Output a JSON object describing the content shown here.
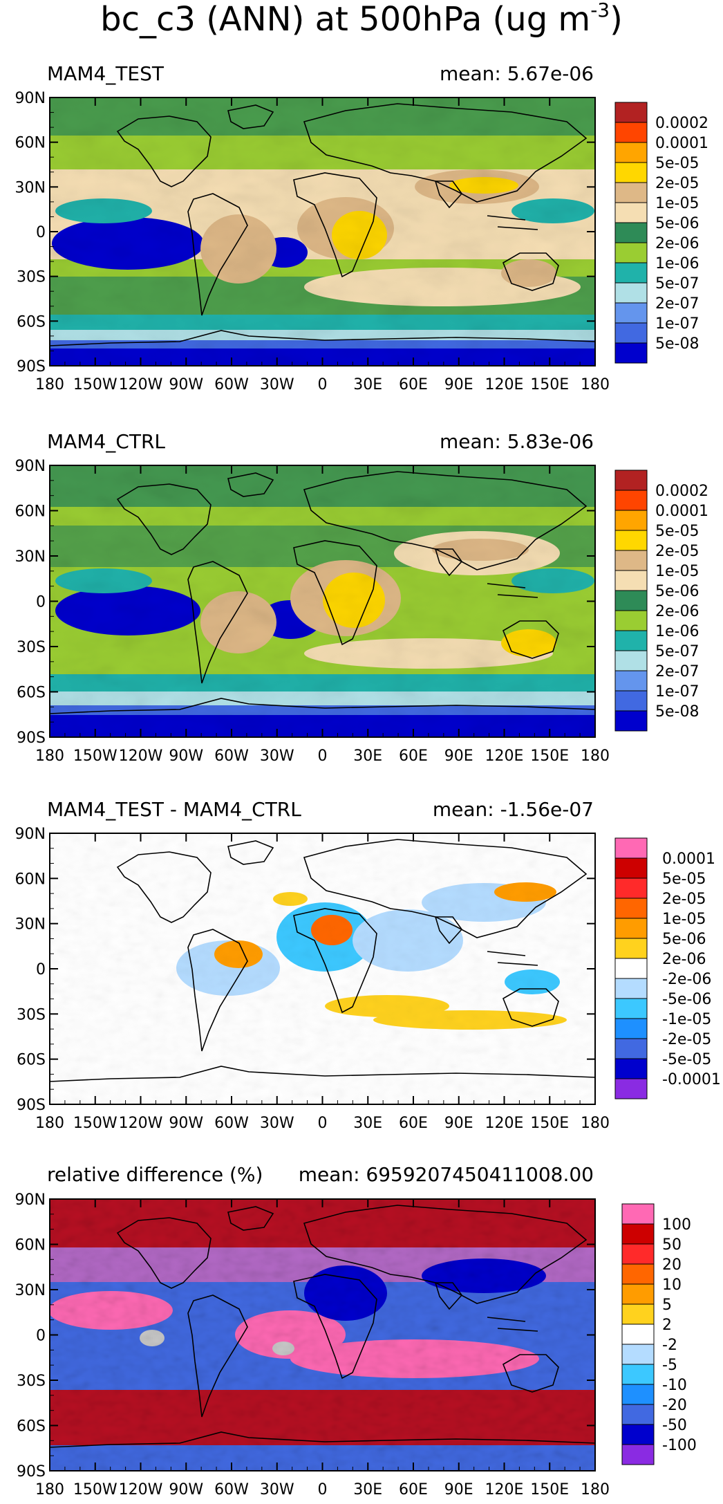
{
  "figure": {
    "title_main": "bc_c3 (ANN) at 500hPa (ug m",
    "title_sup": "-3",
    "title_end": ")"
  },
  "axes": {
    "lat_ticks": [
      "90N",
      "60N",
      "30N",
      "0",
      "30S",
      "60S",
      "90S"
    ],
    "lon_ticks": [
      "180",
      "150W",
      "120W",
      "90W",
      "60W",
      "30W",
      "0",
      "30E",
      "60E",
      "90E",
      "120E",
      "150E",
      "180"
    ]
  },
  "chart_data": [
    {
      "type": "heatmap",
      "title": "MAM4_TEST",
      "stat": "mean: 5.67e-06",
      "xlim": [
        -180,
        180
      ],
      "ylim": [
        -90,
        90
      ],
      "colorbar": {
        "labels": [
          "0.0002",
          "0.0001",
          "5e-05",
          "2e-05",
          "1e-05",
          "5e-06",
          "2e-06",
          "1e-06",
          "5e-07",
          "2e-07",
          "1e-07",
          "5e-08"
        ],
        "colors": [
          "#b22222",
          "#ff4500",
          "#ffa500",
          "#ffd700",
          "#deb887",
          "#f5deb3",
          "#2e8b57",
          "#9acd32",
          "#20b2aa",
          "#b0e0e6",
          "#6495ed",
          "#4169e1",
          "#0000cd"
        ]
      }
    },
    {
      "type": "heatmap",
      "title": "MAM4_CTRL",
      "stat": "mean: 5.83e-06",
      "xlim": [
        -180,
        180
      ],
      "ylim": [
        -90,
        90
      ],
      "colorbar": {
        "labels": [
          "0.0002",
          "0.0001",
          "5e-05",
          "2e-05",
          "1e-05",
          "5e-06",
          "2e-06",
          "1e-06",
          "5e-07",
          "2e-07",
          "1e-07",
          "5e-08"
        ],
        "colors": [
          "#b22222",
          "#ff4500",
          "#ffa500",
          "#ffd700",
          "#deb887",
          "#f5deb3",
          "#2e8b57",
          "#9acd32",
          "#20b2aa",
          "#b0e0e6",
          "#6495ed",
          "#4169e1",
          "#0000cd"
        ]
      }
    },
    {
      "type": "heatmap",
      "title": "MAM4_TEST - MAM4_CTRL",
      "stat": "mean: -1.56e-07",
      "xlim": [
        -180,
        180
      ],
      "ylim": [
        -90,
        90
      ],
      "colorbar": {
        "labels": [
          "0.0001",
          "5e-05",
          "2e-05",
          "1e-05",
          "5e-06",
          "2e-06",
          "-2e-06",
          "-5e-06",
          "-1e-05",
          "-2e-05",
          "-5e-05",
          "-0.0001"
        ],
        "colors": [
          "#ff69b4",
          "#cd0000",
          "#ff2a2a",
          "#ff6600",
          "#ff9c00",
          "#ffd21e",
          "#ffffff",
          "#b4dcff",
          "#3cc8ff",
          "#1e90ff",
          "#4169e1",
          "#0000cd",
          "#8a2be2"
        ]
      }
    },
    {
      "type": "heatmap",
      "title": "relative difference (%)",
      "stat": "mean: 6959207450411008.00",
      "xlim": [
        -180,
        180
      ],
      "ylim": [
        -90,
        90
      ],
      "colorbar": {
        "labels": [
          "100",
          "50",
          "20",
          "10",
          "5",
          "2",
          "-2",
          "-5",
          "-10",
          "-20",
          "-50",
          "-100"
        ],
        "colors": [
          "#ff69b4",
          "#cd0000",
          "#ff2a2a",
          "#ff6600",
          "#ff9c00",
          "#ffd21e",
          "#ffffff",
          "#b4dcff",
          "#3cc8ff",
          "#1e90ff",
          "#4169e1",
          "#0000cd",
          "#8a2be2"
        ]
      }
    }
  ]
}
